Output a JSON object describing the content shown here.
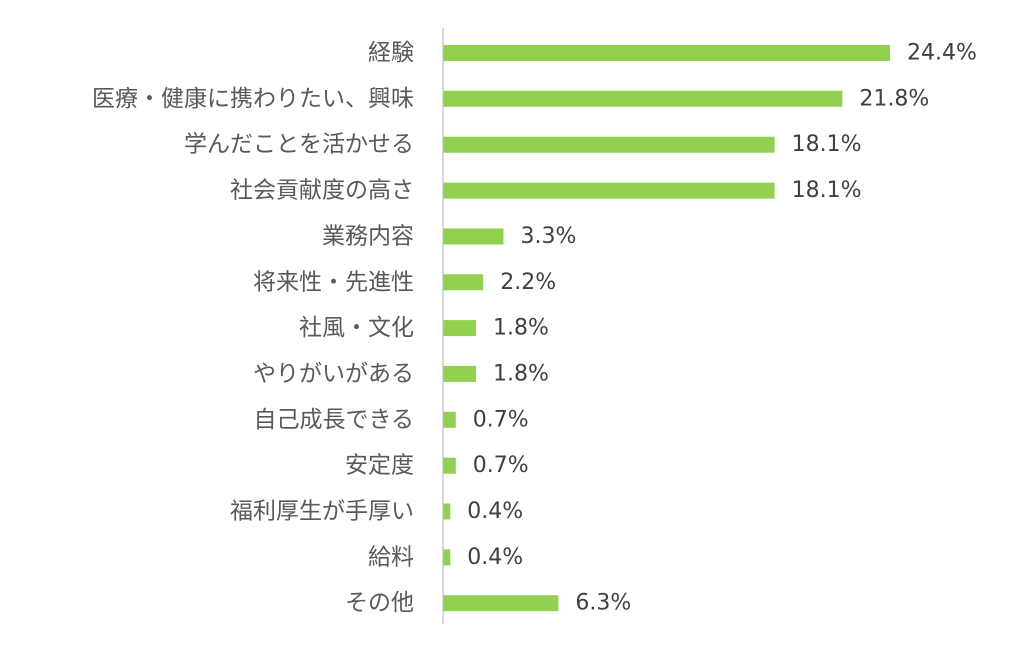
{
  "chart_data": {
    "type": "bar",
    "orientation": "horizontal",
    "categories": [
      "経験",
      "医療・健康に携わりたい、興味",
      "学んだことを活かせる",
      "社会貢献度の高さ",
      "業務内容",
      "将来性・先進性",
      "社風・文化",
      "やりがいがある",
      "自己成長できる",
      "安定度",
      "福利厚生が手厚い",
      "給料",
      "その他"
    ],
    "values": [
      24.4,
      21.8,
      18.1,
      18.1,
      3.3,
      2.2,
      1.8,
      1.8,
      0.7,
      0.7,
      0.4,
      0.4,
      6.3
    ],
    "value_labels": [
      "24.4%",
      "21.8%",
      "18.1%",
      "18.1%",
      "3.3%",
      "2.2%",
      "1.8%",
      "1.8%",
      "0.7%",
      "0.7%",
      "0.4%",
      "0.4%",
      "6.3%"
    ],
    "unit": "%",
    "xlim": [
      0,
      30
    ],
    "grid": false,
    "legend": "none",
    "bar_color": "#92d050",
    "axis_color": "#bfbfbf",
    "category_text_color": "#595959",
    "value_text_color": "#404040"
  }
}
